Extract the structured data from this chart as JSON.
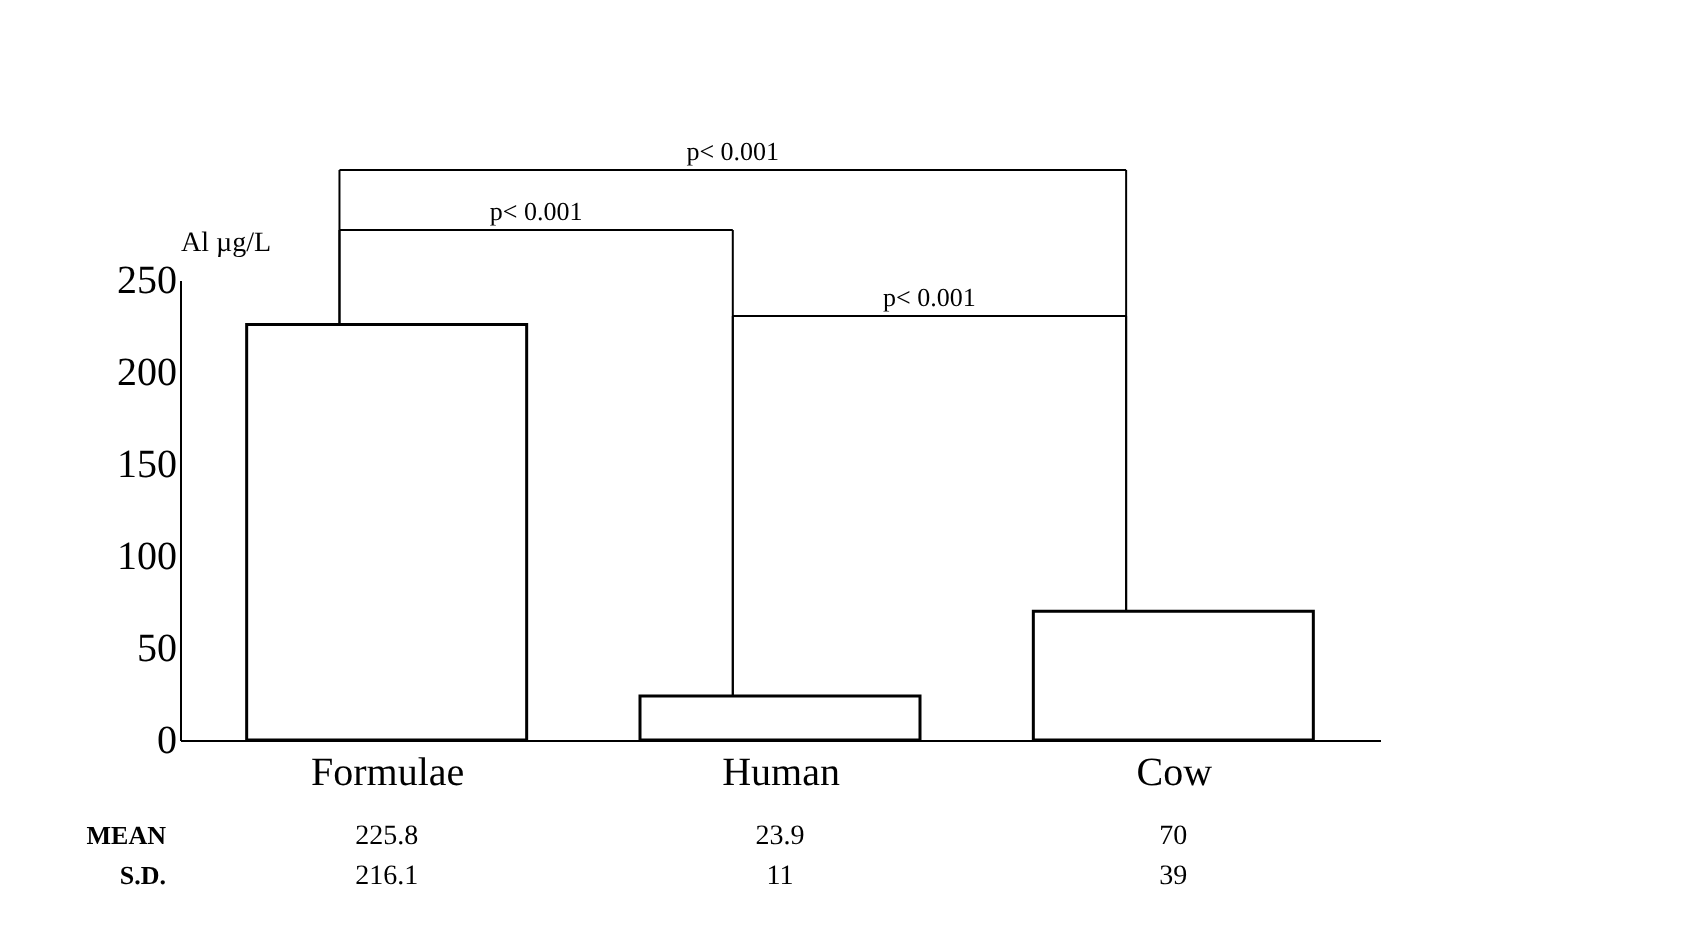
{
  "chart_data": {
    "type": "bar",
    "ylabel": "Al µg/L",
    "categories": [
      "Formulae",
      "Human",
      "Cow"
    ],
    "values": [
      225.8,
      23.9,
      70
    ],
    "color": "#ffffff",
    "ylim": [
      0,
      250
    ],
    "yticks": [
      0,
      50,
      100,
      150,
      200,
      250
    ],
    "grid": false,
    "data_labels": true,
    "annotations": [
      "p< 0.001",
      "p< 0.001",
      "p< 0.001",
      "MEAN",
      "S.D.",
      "216.1",
      "11",
      "39"
    ]
  }
}
